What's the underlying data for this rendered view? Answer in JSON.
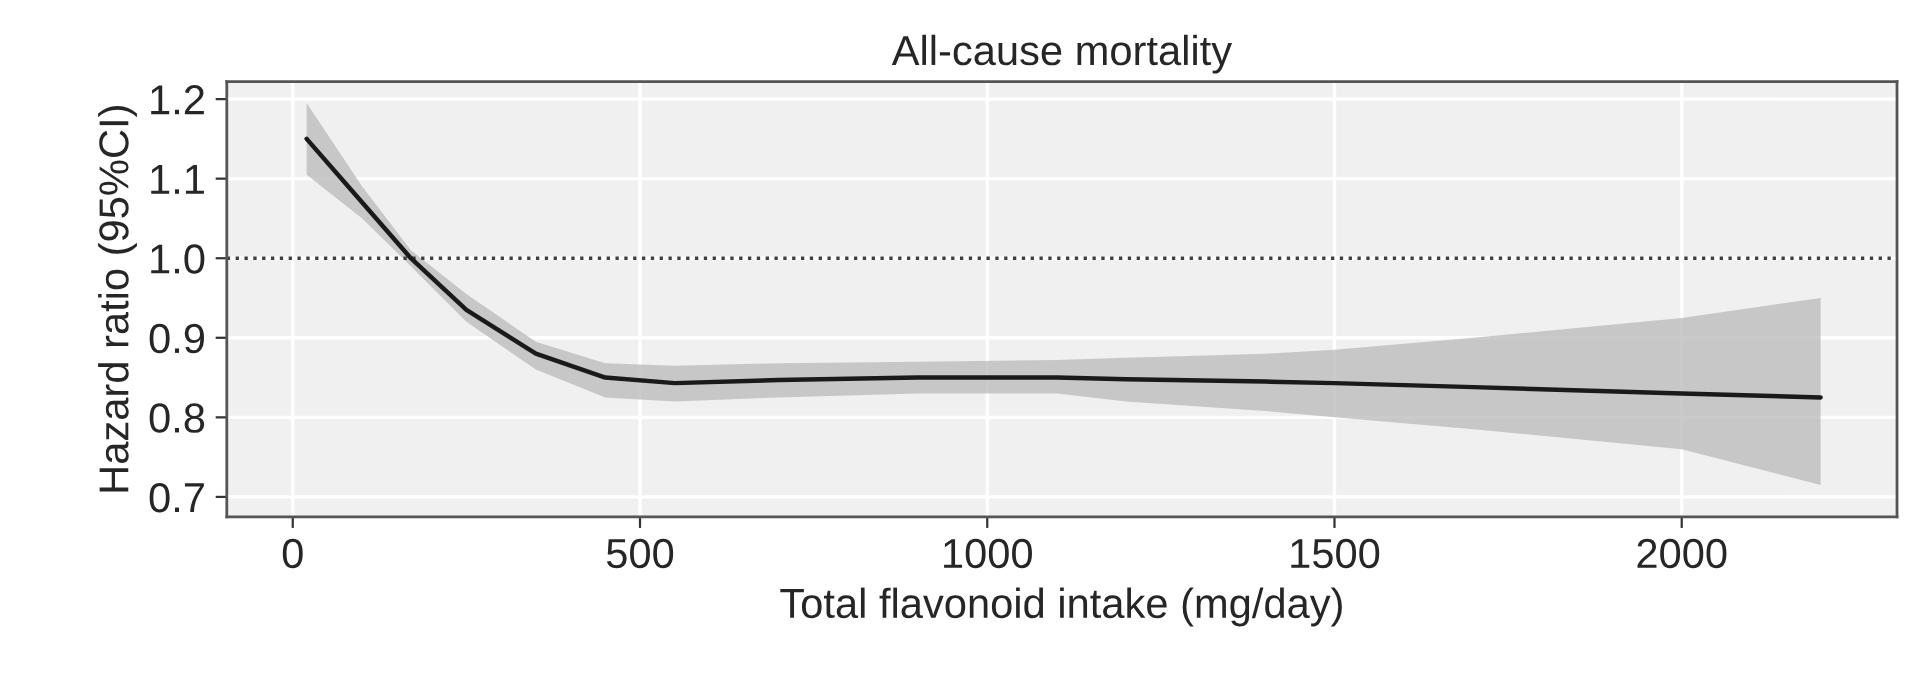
{
  "chart_data": {
    "type": "line",
    "title": "All-cause mortality",
    "xlabel": "Total flavonoid intake (mg/day)",
    "ylabel": "Hazard ratio (95%CI)",
    "series": [
      {
        "color": "#1a1a1a",
        "x": [
          20,
          100,
          170,
          250,
          350,
          450,
          550,
          700,
          900,
          1100,
          1200,
          1400,
          1500,
          1700,
          2000,
          2200
        ],
        "values": [
          1.15,
          1.07,
          1.0,
          0.935,
          0.88,
          0.85,
          0.843,
          0.847,
          0.85,
          0.85,
          0.848,
          0.845,
          0.843,
          0.838,
          0.83,
          0.825
        ],
        "lower": [
          1.105,
          1.05,
          0.99,
          0.92,
          0.86,
          0.825,
          0.82,
          0.825,
          0.83,
          0.83,
          0.82,
          0.808,
          0.8,
          0.785,
          0.76,
          0.715
        ],
        "upper": [
          1.195,
          1.09,
          1.01,
          0.955,
          0.895,
          0.868,
          0.865,
          0.868,
          0.87,
          0.872,
          0.875,
          0.88,
          0.885,
          0.9,
          0.925,
          0.95
        ]
      }
    ],
    "xlim": [
      -95,
      2310
    ],
    "ylim": [
      0.675,
      1.222
    ],
    "xticks": [
      0,
      500,
      1000,
      1500,
      2000
    ],
    "yticks": [
      {
        "value": 0.7,
        "label": "0.7"
      },
      {
        "value": 0.8,
        "label": "0.8"
      },
      {
        "value": 0.9,
        "label": "0.9"
      },
      {
        "value": 1.0,
        "label": "1.0"
      },
      {
        "value": 1.1,
        "label": "1.1"
      },
      {
        "value": 1.2,
        "label": "1.2"
      }
    ],
    "ref_lines": [
      {
        "axis": "y",
        "value": 1.0,
        "color": "#404040",
        "line_style": "dotted"
      }
    ],
    "grid": true,
    "legend": false,
    "line_style": "solid",
    "marker": "none"
  }
}
